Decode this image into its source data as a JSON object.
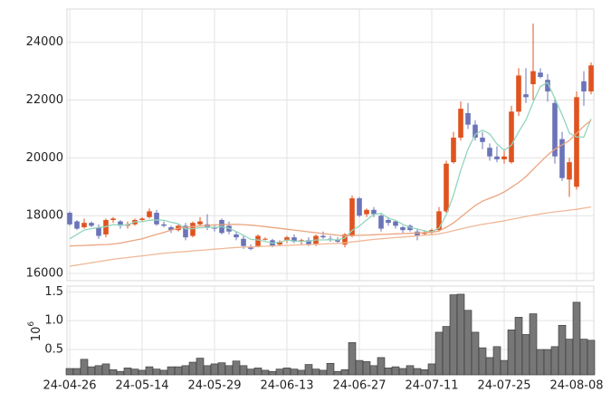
{
  "chart_data": [
    {
      "type": "candlestick",
      "open": [
        18100,
        17800,
        17600,
        17750,
        17600,
        17350,
        17850,
        17800,
        17650,
        17700,
        17850,
        17950,
        18100,
        17700,
        17600,
        17500,
        17650,
        17300,
        17700,
        17700,
        17600,
        17850,
        17650,
        17350,
        17200,
        16900,
        16950,
        17200,
        17150,
        17000,
        17150,
        17250,
        17100,
        17150,
        17000,
        17300,
        17200,
        17150,
        17000,
        17300,
        18600,
        18050,
        18200,
        18000,
        17850,
        17800,
        17600,
        17650,
        17450,
        17400,
        17450,
        17500,
        18150,
        19850,
        20700,
        21550,
        21150,
        20700,
        20350,
        20050,
        19950,
        19850,
        21600,
        22200,
        22550,
        22950,
        22700,
        21900,
        20650,
        19250,
        19000,
        22650,
        22300
      ],
      "high": [
        18150,
        17850,
        17900,
        17800,
        17700,
        17900,
        17950,
        17850,
        17800,
        17900,
        17950,
        18250,
        18200,
        17800,
        17650,
        17700,
        17750,
        17800,
        17950,
        18050,
        17700,
        17900,
        17800,
        17450,
        17300,
        17000,
        17350,
        17250,
        17200,
        17150,
        17300,
        17350,
        17200,
        17250,
        17350,
        17450,
        17300,
        17250,
        17400,
        18700,
        18650,
        18250,
        18300,
        18050,
        17950,
        17850,
        17650,
        17700,
        17550,
        17500,
        17550,
        18300,
        19900,
        20900,
        21950,
        21900,
        21300,
        20900,
        20500,
        20400,
        20300,
        21800,
        23100,
        23100,
        24650,
        23100,
        22900,
        22100,
        20900,
        20000,
        22300,
        23000,
        23300
      ],
      "low": [
        17650,
        17500,
        17550,
        17600,
        17200,
        17250,
        17750,
        17550,
        17550,
        17650,
        17800,
        17900,
        17650,
        17600,
        17400,
        17450,
        17150,
        17250,
        17650,
        17500,
        17450,
        17350,
        17350,
        17150,
        16850,
        16800,
        16900,
        17150,
        16900,
        16950,
        17050,
        17050,
        17000,
        16950,
        16950,
        17200,
        17100,
        17050,
        16900,
        17250,
        17950,
        17950,
        17950,
        17450,
        17650,
        17550,
        17400,
        17450,
        17150,
        17300,
        17350,
        17450,
        18100,
        19800,
        20600,
        21000,
        20600,
        20300,
        19900,
        19850,
        19800,
        19800,
        21450,
        21900,
        22000,
        22750,
        21950,
        19800,
        19200,
        18650,
        18900,
        21800,
        22200
      ],
      "close": [
        17700,
        17550,
        17750,
        17650,
        17300,
        17850,
        17900,
        17650,
        17700,
        17850,
        17900,
        18150,
        17700,
        17650,
        17500,
        17650,
        17250,
        17750,
        17800,
        17600,
        17550,
        17400,
        17450,
        17250,
        16950,
        16850,
        17300,
        17200,
        16950,
        17100,
        17250,
        17100,
        17150,
        17000,
        17300,
        17250,
        17150,
        17100,
        17350,
        18600,
        18000,
        18200,
        18050,
        17550,
        17750,
        17650,
        17500,
        17500,
        17300,
        17400,
        17500,
        18150,
        19800,
        20700,
        21700,
        21150,
        20700,
        20550,
        20050,
        19950,
        20050,
        21600,
        22850,
        22100,
        23000,
        22800,
        22300,
        20050,
        19300,
        19850,
        22100,
        22300,
        23200
      ],
      "up_color": "#e0531f",
      "down_color": "#6b74b8",
      "series": [
        {
          "color": "#93d5bd",
          "values": [
            17200,
            17350,
            17500,
            17550,
            17590,
            17620,
            17690,
            17670,
            17680,
            17790,
            17790,
            17840,
            17850,
            17840,
            17770,
            17720,
            17540,
            17550,
            17580,
            17600,
            17590,
            17620,
            17560,
            17450,
            17320,
            17180,
            17160,
            17110,
            17050,
            17080,
            17160,
            17120,
            17110,
            17120,
            17160,
            17160,
            17170,
            17160,
            17230,
            17490,
            17640,
            17850,
            18040,
            18080,
            17910,
            17840,
            17700,
            17590,
            17540,
            17470,
            17440,
            17570,
            18030,
            18710,
            19570,
            20300,
            20810,
            20960,
            20830,
            20480,
            20260,
            20440,
            20900,
            21310,
            21920,
            22470,
            22610,
            22050,
            21490,
            20860,
            20720,
            20720,
            21350
          ]
        },
        {
          "color": "#eba47f",
          "values": [
            16950,
            16960,
            16970,
            16980,
            16990,
            17000,
            17020,
            17050,
            17100,
            17150,
            17200,
            17280,
            17350,
            17420,
            17500,
            17560,
            17600,
            17620,
            17640,
            17660,
            17680,
            17690,
            17700,
            17700,
            17690,
            17670,
            17650,
            17620,
            17590,
            17560,
            17530,
            17500,
            17470,
            17440,
            17410,
            17380,
            17350,
            17320,
            17300,
            17310,
            17320,
            17330,
            17340,
            17350,
            17360,
            17370,
            17380,
            17390,
            17400,
            17410,
            17420,
            17470,
            17600,
            17750,
            17950,
            18150,
            18350,
            18500,
            18600,
            18700,
            18820,
            18980,
            19150,
            19350,
            19600,
            19850,
            20100,
            20300,
            20450,
            20600,
            20850,
            21100,
            21300
          ]
        },
        {
          "color": "#f0b898",
          "values": [
            16250,
            16290,
            16330,
            16370,
            16410,
            16450,
            16490,
            16520,
            16550,
            16580,
            16610,
            16640,
            16670,
            16700,
            16720,
            16740,
            16760,
            16780,
            16800,
            16820,
            16840,
            16860,
            16880,
            16900,
            16910,
            16920,
            16930,
            16940,
            16950,
            16960,
            16970,
            16980,
            16990,
            17000,
            17010,
            17020,
            17030,
            17040,
            17060,
            17090,
            17120,
            17150,
            17180,
            17200,
            17220,
            17240,
            17260,
            17280,
            17300,
            17320,
            17340,
            17370,
            17420,
            17480,
            17540,
            17600,
            17650,
            17700,
            17740,
            17780,
            17820,
            17870,
            17920,
            17970,
            18020,
            18060,
            18100,
            18130,
            18160,
            18190,
            18220,
            18260,
            18300
          ]
        }
      ],
      "ylim": [
        15750,
        25150
      ],
      "yticks": [
        16000,
        18000,
        20000,
        22000,
        24000
      ],
      "grid": true
    },
    {
      "type": "bar",
      "categories": [
        "24-04-26",
        null,
        null,
        null,
        null,
        null,
        null,
        null,
        null,
        null,
        "24-05-14",
        null,
        null,
        null,
        null,
        null,
        null,
        null,
        null,
        null,
        "24-05-29",
        null,
        null,
        null,
        null,
        null,
        null,
        null,
        null,
        null,
        "24-06-13",
        null,
        null,
        null,
        null,
        null,
        null,
        null,
        null,
        null,
        "24-06-27",
        null,
        null,
        null,
        null,
        null,
        null,
        null,
        null,
        null,
        "24-07-11",
        null,
        null,
        null,
        null,
        null,
        null,
        null,
        null,
        null,
        "24-07-25",
        null,
        null,
        null,
        null,
        null,
        null,
        null,
        null,
        null,
        "24-08-08",
        null,
        null
      ],
      "values": [
        0.17,
        0.17,
        0.33,
        0.2,
        0.22,
        0.25,
        0.15,
        0.12,
        0.18,
        0.16,
        0.14,
        0.2,
        0.16,
        0.14,
        0.2,
        0.2,
        0.22,
        0.28,
        0.35,
        0.22,
        0.25,
        0.27,
        0.22,
        0.3,
        0.22,
        0.16,
        0.18,
        0.14,
        0.12,
        0.16,
        0.18,
        0.16,
        0.14,
        0.24,
        0.16,
        0.14,
        0.26,
        0.12,
        0.15,
        0.62,
        0.31,
        0.29,
        0.22,
        0.36,
        0.18,
        0.2,
        0.17,
        0.22,
        0.17,
        0.15,
        0.25,
        0.8,
        0.9,
        1.45,
        1.46,
        1.18,
        0.8,
        0.53,
        0.36,
        0.55,
        0.31,
        0.84,
        1.06,
        0.76,
        1.12,
        0.5,
        0.5,
        0.55,
        0.92,
        0.68,
        1.32,
        0.68,
        0.66
      ],
      "color": "#777777",
      "ylabel": {
        "base": "10",
        "exponent": "6"
      },
      "ylim": [
        0.06,
        1.6
      ],
      "yticks": [
        0.5,
        {
          "value": 1,
          "label": "1.0"
        },
        1.5
      ],
      "grid": true
    }
  ]
}
